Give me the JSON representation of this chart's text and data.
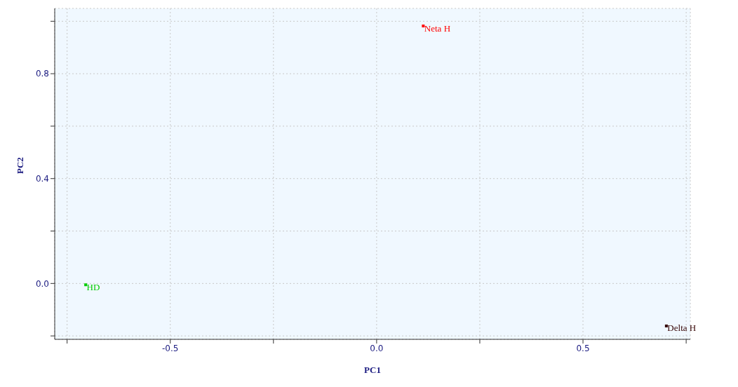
{
  "chart_data": {
    "type": "scatter",
    "xlabel": "PC1",
    "ylabel": "PC2",
    "xlim": [
      -0.78,
      0.76
    ],
    "ylim": [
      -0.213,
      1.049
    ],
    "xticks": [
      {
        "value": -0.75,
        "label": null
      },
      -0.5,
      {
        "value": -0.25,
        "label": null
      },
      {
        "value": 0,
        "label": "0.0"
      },
      {
        "value": 0.25,
        "label": null
      },
      0.5,
      {
        "value": 0.75,
        "label": null
      }
    ],
    "yticks": [
      {
        "value": -0.2,
        "label": null
      },
      {
        "value": 0,
        "label": "0.0"
      },
      {
        "value": 0.2,
        "label": null
      },
      0.4,
      {
        "value": 0.6,
        "label": null
      },
      0.8,
      {
        "value": 1.0,
        "label": null
      }
    ],
    "grid": true,
    "marker": "square",
    "legend": false,
    "series": [
      {
        "name": "HD",
        "color": "#00cc00",
        "x": [
          -0.705
        ],
        "values": [
          -0.005
        ]
      },
      {
        "name": "Neta H",
        "color": "#ff0000",
        "x": [
          0.113
        ],
        "values": [
          0.982
        ]
      },
      {
        "name": "Delta H",
        "color": "#330000",
        "x": [
          0.702
        ],
        "values": [
          -0.162
        ]
      }
    ]
  }
}
